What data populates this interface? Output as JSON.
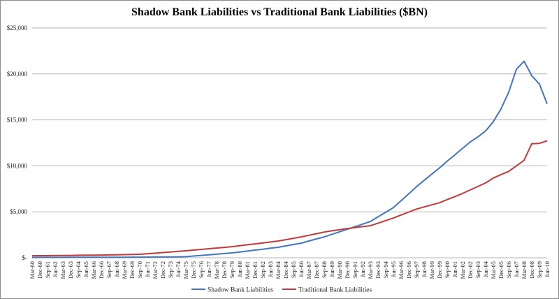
{
  "chart_data": {
    "type": "line",
    "title": "Shadow Bank Liabilities vs Traditional Bank Liabilities ($BN)",
    "xlabel": "",
    "ylabel": "",
    "ylim": [
      0,
      25000
    ],
    "yticks": [
      0,
      5000,
      10000,
      15000,
      20000,
      25000
    ],
    "ytick_labels": [
      "$-",
      "$5,000",
      "$10,000",
      "$15,000",
      "$20,000",
      "$25,000"
    ],
    "grid": true,
    "legend_position": "bottom",
    "categories": [
      "Mar-60",
      "Dec-60",
      "Sep-61",
      "Jun-62",
      "Mar-63",
      "Dec-63",
      "Sep-64",
      "Jun-65",
      "Mar-66",
      "Dec-66",
      "Sep-67",
      "Jun-68",
      "Mar-69",
      "Dec-69",
      "Sep-70",
      "Jun-71",
      "Mar-72",
      "Dec-72",
      "Sep-73",
      "Jun-74",
      "Mar-75",
      "Dec-75",
      "Sep-76",
      "Jun-77",
      "Mar-78",
      "Dec-78",
      "Sep-79",
      "Jun-80",
      "Mar-81",
      "Dec-81",
      "Sep-82",
      "Jun-83",
      "Mar-84",
      "Dec-84",
      "Sep-85",
      "Jun-86",
      "Mar-87",
      "Dec-87",
      "Sep-88",
      "Jun-89",
      "Mar-90",
      "Dec-90",
      "Sep-91",
      "Jun-92",
      "Mar-93",
      "Dec-93",
      "Sep-94",
      "Jun-95",
      "Mar-96",
      "Dec-96",
      "Sep-97",
      "Jun-98",
      "Mar-99",
      "Dec-99",
      "Sep-00",
      "Jun-01",
      "Mar-02",
      "Dec-02",
      "Sep-03",
      "Jun-04",
      "Mar-05",
      "Dec-05",
      "Sep-06",
      "Jun-07",
      "Mar-08",
      "Dec-08",
      "Sep-09",
      "Jun-10"
    ],
    "series": [
      {
        "name": "Shadow Bank Liabilities",
        "color": "#4276c0",
        "values": [
          40,
          42,
          44,
          46,
          48,
          50,
          52,
          54,
          56,
          58,
          60,
          62,
          64,
          67,
          70,
          78,
          86,
          94,
          102,
          110,
          120,
          190,
          255,
          320,
          390,
          460,
          530,
          630,
          730,
          835,
          935,
          1040,
          1140,
          1290,
          1440,
          1590,
          1820,
          2050,
          2270,
          2550,
          2830,
          3100,
          3380,
          3660,
          3940,
          4450,
          4950,
          5460,
          6200,
          6960,
          7730,
          8420,
          9100,
          9780,
          10500,
          11200,
          11900,
          12600,
          13150,
          13800,
          14800,
          16200,
          18000,
          20500,
          21380,
          19800,
          18900,
          16750
        ]
      },
      {
        "name": "Traditional Bank Liabilities",
        "color": "#c0393b",
        "values": [
          220,
          225,
          230,
          240,
          250,
          260,
          270,
          280,
          290,
          300,
          310,
          325,
          340,
          360,
          380,
          440,
          500,
          570,
          630,
          700,
          760,
          835,
          910,
          985,
          1060,
          1135,
          1210,
          1310,
          1410,
          1510,
          1610,
          1720,
          1820,
          1970,
          2120,
          2270,
          2450,
          2620,
          2800,
          2930,
          3060,
          3180,
          3280,
          3390,
          3490,
          3770,
          4040,
          4320,
          4650,
          4980,
          5300,
          5530,
          5760,
          5990,
          6330,
          6660,
          7000,
          7380,
          7760,
          8140,
          8680,
          9050,
          9400,
          10000,
          10600,
          12400,
          12450,
          12730
        ]
      }
    ]
  }
}
